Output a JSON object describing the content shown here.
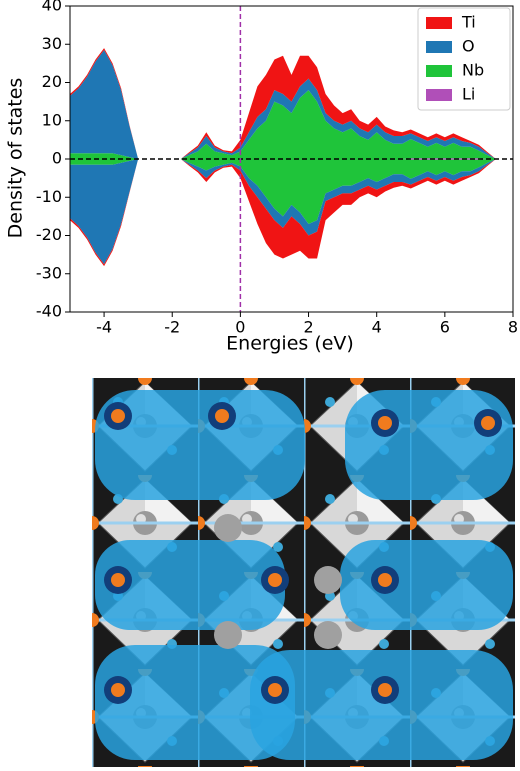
{
  "chart_data": {
    "type": "area",
    "xlabel": "Energies (eV)",
    "ylabel": "Density of states",
    "x": [
      -5,
      -4.75,
      -4.5,
      -4.25,
      -4,
      -3.75,
      -3.5,
      -3.25,
      -3,
      -2.75,
      -2.5,
      -2.25,
      -2,
      -1.75,
      -1.5,
      -1.25,
      -1,
      -0.75,
      -0.5,
      -0.25,
      0,
      0.25,
      0.5,
      0.75,
      1,
      1.25,
      1.5,
      1.75,
      2,
      2.25,
      2.5,
      2.75,
      3,
      3.25,
      3.5,
      3.75,
      4,
      4.25,
      4.5,
      4.75,
      5,
      5.25,
      5.5,
      5.75,
      6,
      6.25,
      6.5,
      6.75,
      7,
      7.25,
      7.5
    ],
    "series": [
      {
        "name": "Ti",
        "color": "#f01414",
        "values": [
          0.5,
          0.5,
          0.5,
          0.5,
          0.5,
          0.5,
          0.5,
          0.2,
          0,
          0,
          0,
          0,
          0,
          0,
          0.3,
          0.5,
          1,
          0.5,
          0.3,
          0.5,
          2,
          5,
          8,
          9,
          8,
          10,
          7,
          8,
          6,
          6,
          5,
          4,
          3,
          3,
          2,
          2,
          2,
          1.5,
          1.5,
          1,
          1,
          1,
          1,
          1,
          1,
          1,
          1,
          0.5,
          0.5,
          0.3,
          0
        ],
        "values_down": [
          -0.5,
          -0.5,
          -0.5,
          -0.5,
          -0.5,
          -0.5,
          -0.5,
          -0.2,
          0,
          0,
          0,
          0,
          0,
          0,
          -0.3,
          -0.5,
          -1,
          -0.5,
          -0.3,
          -0.5,
          -2,
          -4,
          -7,
          -9,
          -9,
          -8,
          -10,
          -7,
          -6,
          -7,
          -5,
          -4,
          -3,
          -3,
          -2,
          -2,
          -2,
          -1.5,
          -1.5,
          -1,
          -1,
          -1,
          -1,
          -1,
          -1,
          -1,
          -1,
          -0.5,
          -0.5,
          -0.3,
          0
        ]
      },
      {
        "name": "O",
        "color": "#1f77b4",
        "values": [
          15,
          17,
          20,
          24,
          27,
          23,
          17,
          8,
          0,
          0,
          0,
          0,
          0,
          0,
          0.5,
          1,
          2,
          1,
          0.5,
          0.5,
          1,
          2,
          3,
          3,
          3,
          3,
          3,
          3,
          3,
          3,
          2,
          2,
          2,
          2,
          2,
          2,
          2,
          2,
          2,
          2,
          1.5,
          1.5,
          1.5,
          1.5,
          1.5,
          1.5,
          1.5,
          1,
          1,
          0.5,
          0
        ],
        "values_down": [
          -14,
          -16,
          -19,
          -23,
          -26,
          -22,
          -16,
          -8,
          0,
          0,
          0,
          0,
          0,
          0,
          -0.5,
          -1,
          -2,
          -1,
          -0.5,
          -0.5,
          -1,
          -2,
          -3,
          -3,
          -3,
          -3,
          -3,
          -3,
          -3,
          -3,
          -2,
          -2,
          -2,
          -2,
          -2,
          -2,
          -2,
          -2,
          -2,
          -2,
          -1.5,
          -1.5,
          -1.5,
          -1.5,
          -1.5,
          -1.5,
          -1.5,
          -1,
          -1,
          -0.5,
          0
        ]
      },
      {
        "name": "Nb",
        "color": "#1fc43a",
        "values": [
          1.5,
          1.5,
          1.5,
          1.5,
          1.5,
          1.5,
          1,
          0.5,
          0,
          0,
          0,
          0,
          0,
          0,
          1,
          2,
          4,
          2,
          1.5,
          1,
          2,
          5,
          8,
          10,
          15,
          14,
          12,
          16,
          18,
          15,
          10,
          8,
          7,
          8,
          6,
          5,
          7,
          5,
          4,
          4,
          5,
          4,
          3,
          4,
          3,
          4,
          3,
          3,
          2,
          1,
          0
        ],
        "values_down": [
          -1.5,
          -1.5,
          -1.5,
          -1.5,
          -1.5,
          -1.5,
          -1,
          -0.5,
          0,
          0,
          0,
          0,
          0,
          0,
          -1,
          -2,
          -3,
          -2,
          -1.5,
          -1,
          -2,
          -5,
          -7,
          -10,
          -13,
          -15,
          -12,
          -14,
          -17,
          -16,
          -9,
          -8,
          -7,
          -7,
          -6,
          -5,
          -6,
          -5,
          -4,
          -4,
          -5,
          -4,
          -3,
          -4,
          -3,
          -4,
          -3,
          -3,
          -2,
          -1,
          0
        ]
      },
      {
        "name": "Li",
        "color": "#b04fb8",
        "values": [
          0,
          0,
          0,
          0,
          0,
          0,
          0,
          0,
          0,
          0,
          0,
          0,
          0,
          0,
          0,
          0,
          0,
          0,
          0,
          0,
          0,
          0,
          0,
          0,
          0,
          0,
          0,
          0,
          0,
          0,
          0,
          0,
          0,
          0,
          0,
          0,
          0,
          0,
          0,
          0,
          0.2,
          0.2,
          0.2,
          0.2,
          0.2,
          0.2,
          0.2,
          0.2,
          0.2,
          0,
          0
        ],
        "values_down": [
          0,
          0,
          0,
          0,
          0,
          0,
          0,
          0,
          0,
          0,
          0,
          0,
          0,
          0,
          0,
          0,
          0,
          0,
          0,
          0,
          0,
          0,
          0,
          0,
          0,
          0,
          0,
          0,
          0,
          0,
          0,
          0,
          0,
          0,
          0,
          0,
          0,
          0,
          0,
          0,
          -0.2,
          -0.2,
          -0.2,
          -0.2,
          -0.2,
          -0.2,
          -0.2,
          -0.2,
          -0.2,
          0,
          0
        ]
      }
    ],
    "xlim": [
      -5,
      8
    ],
    "xticks": [
      -4,
      -2,
      0,
      2,
      4,
      6,
      8
    ],
    "ylim": [
      -40,
      40
    ],
    "yticks": [
      -40,
      -30,
      -20,
      -10,
      0,
      10,
      20,
      30,
      40
    ],
    "hline": 0,
    "vline": 0,
    "legend": "upper right",
    "grid": false
  }
}
